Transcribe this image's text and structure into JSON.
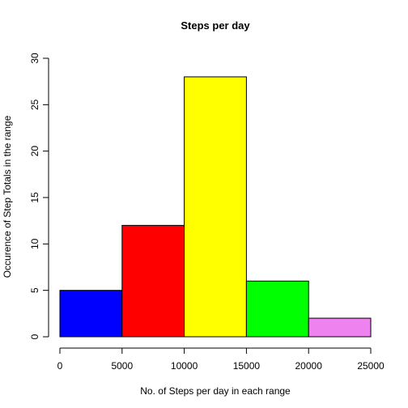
{
  "chart_data": {
    "type": "bar",
    "title": "Steps per day",
    "xlabel": "No. of Steps per day in each range",
    "ylabel": "Occurence of Step Totals in the range",
    "bins": [
      {
        "start": 0,
        "end": 5000,
        "value": 5,
        "color": "#0000FF"
      },
      {
        "start": 5000,
        "end": 10000,
        "value": 12,
        "color": "#FF0000"
      },
      {
        "start": 10000,
        "end": 15000,
        "value": 28,
        "color": "#FFFF00"
      },
      {
        "start": 15000,
        "end": 20000,
        "value": 6,
        "color": "#00FF00"
      },
      {
        "start": 20000,
        "end": 25000,
        "value": 2,
        "color": "#EE82EE"
      }
    ],
    "x_ticks": [
      "0",
      "5000",
      "10000",
      "15000",
      "20000",
      "25000"
    ],
    "y_ticks": [
      "0",
      "5",
      "10",
      "15",
      "20",
      "25",
      "30"
    ],
    "xlim": [
      0,
      25000
    ],
    "ylim": [
      0,
      30
    ],
    "grid": false,
    "legend": "none"
  }
}
